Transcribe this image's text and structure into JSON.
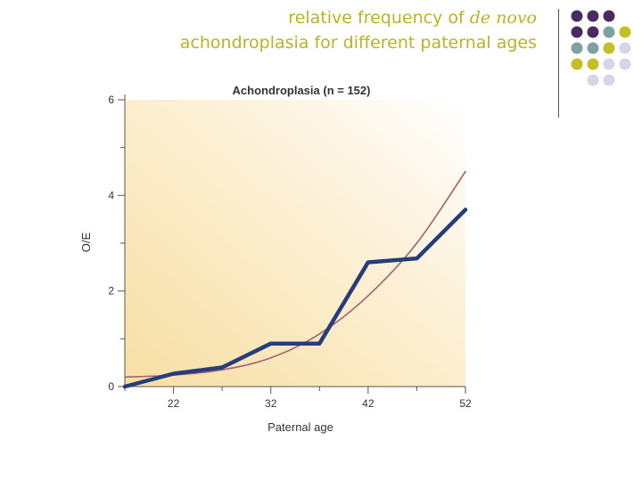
{
  "slide": {
    "title_line1_prefix": "relative frequency of ",
    "title_line1_italic": "de novo",
    "title_line2": "achondroplasia for different paternal ages"
  },
  "decor": {
    "dot_colors": {
      "purple": "#4b2a62",
      "teal": "#7da3a0",
      "olive": "#c3bf24",
      "lavender": "#d6d6e6"
    }
  },
  "chart_data": {
    "type": "line",
    "title": "Achondroplasia (n = 152)",
    "xlabel": "Paternal age",
    "ylabel": "O/E",
    "xlim": [
      17,
      52
    ],
    "ylim": [
      0,
      6
    ],
    "xticks": [
      22,
      32,
      42,
      52
    ],
    "yticks": [
      0,
      2,
      4,
      6
    ],
    "grid": false,
    "series": [
      {
        "kind": "observed",
        "color": "#263d7c",
        "points": [
          [
            17,
            0
          ],
          [
            22,
            0.27
          ],
          [
            27,
            0.4
          ],
          [
            32,
            0.9
          ],
          [
            37,
            0.9
          ],
          [
            42,
            2.6
          ],
          [
            47,
            2.68
          ],
          [
            52,
            3.7
          ]
        ]
      },
      {
        "kind": "fit",
        "color": "#a85f6f",
        "points": [
          [
            17,
            0.2
          ],
          [
            22,
            0.24
          ],
          [
            27,
            0.35
          ],
          [
            32,
            0.6
          ],
          [
            37,
            1.1
          ],
          [
            42,
            1.9
          ],
          [
            47,
            3.0
          ],
          [
            52,
            4.5
          ]
        ]
      }
    ]
  }
}
